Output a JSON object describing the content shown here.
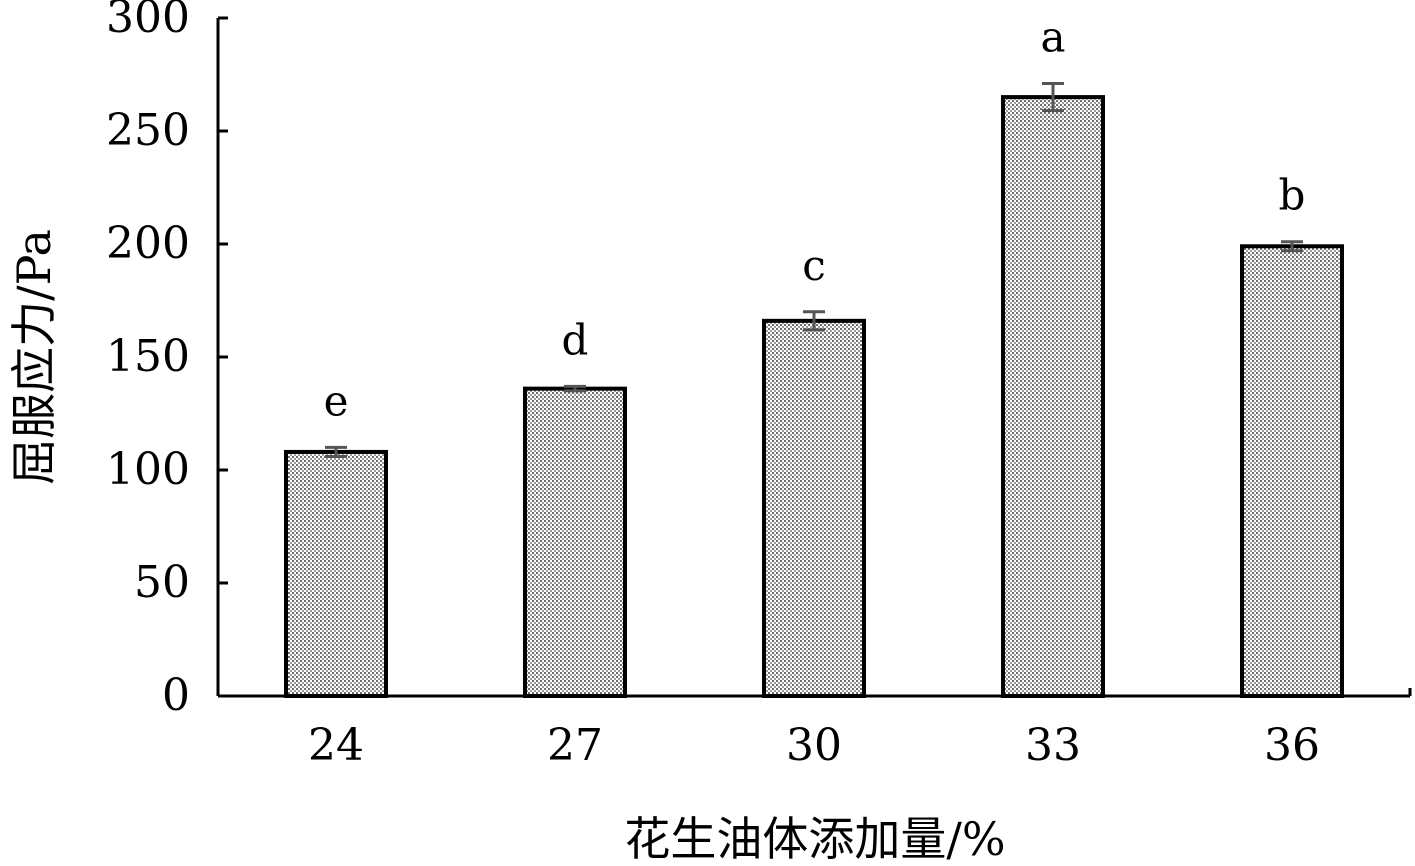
{
  "chart_data": {
    "type": "bar",
    "categories": [
      "24",
      "27",
      "30",
      "33",
      "36"
    ],
    "values": [
      108,
      136,
      166,
      265,
      199
    ],
    "errors": [
      2,
      1,
      4,
      6,
      2
    ],
    "significance_labels": [
      "e",
      "d",
      "c",
      "a",
      "b"
    ],
    "xlabel": "花生油体添加量/%",
    "ylabel": "屈服应力/Pa",
    "ylim": [
      0,
      300
    ],
    "yticks": [
      0,
      50,
      100,
      150,
      200,
      250,
      300
    ],
    "grid": false,
    "bar_fill": "stippled grey",
    "bar_outline_color": "#000000",
    "error_bar_color": "#555555"
  }
}
